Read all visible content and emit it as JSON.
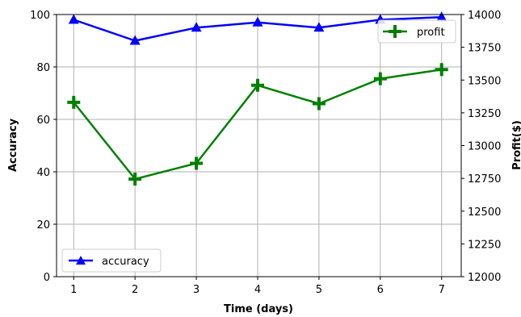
{
  "chart_data": {
    "type": "line",
    "xlabel": "Time (days)",
    "ylabel_left": "Accuracy",
    "ylabel_right": "Profit($)",
    "x": [
      1,
      2,
      3,
      4,
      5,
      6,
      7
    ],
    "xlim": [
      0.72,
      7.32
    ],
    "ylim_left": [
      0,
      100
    ],
    "ylim_right": [
      12000,
      14000
    ],
    "yticks_left": [
      0,
      20,
      40,
      60,
      80,
      100
    ],
    "yticks_right": [
      12000,
      12250,
      12500,
      12750,
      13000,
      13250,
      13500,
      13750,
      14000
    ],
    "grid": true,
    "series": [
      {
        "name": "accuracy",
        "axis": "left",
        "color": "#0000ff",
        "marker": "triangle",
        "values": [
          98,
          90,
          95,
          97,
          95,
          98,
          99
        ],
        "legend_position": "lower-left"
      },
      {
        "name": "profit",
        "axis": "right",
        "color": "#008000",
        "marker": "plus",
        "values": [
          13330,
          12745,
          12865,
          13460,
          13320,
          13510,
          13580
        ],
        "legend_position": "upper-right"
      }
    ]
  }
}
